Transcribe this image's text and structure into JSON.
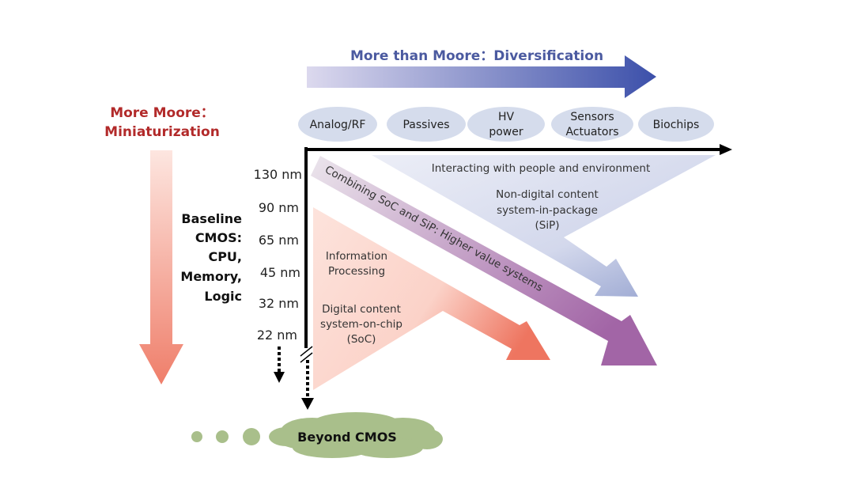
{
  "more_than_moore": {
    "title": "More than Moore：Diversification",
    "color": "#4b5aa0"
  },
  "more_moore": {
    "line1": "More Moore：",
    "line2": "Miniaturization",
    "color": "#b22a2a"
  },
  "categories": [
    {
      "lines": [
        "Analog/RF"
      ]
    },
    {
      "lines": [
        "Passives"
      ]
    },
    {
      "lines": [
        "HV",
        "power"
      ]
    },
    {
      "lines": [
        "Sensors",
        "Actuators"
      ]
    },
    {
      "lines": [
        "Biochips"
      ]
    }
  ],
  "nodes": [
    "130 nm",
    "90 nm",
    "65 nm",
    "45 nm",
    "32 nm",
    "22 nm"
  ],
  "baseline": [
    "Baseline",
    "CMOS:",
    "CPU,",
    "Memory,",
    "Logic"
  ],
  "sip_region": {
    "heading": "Interacting with people and environment",
    "lines": [
      "Non-digital content",
      "system-in-package",
      "(SiP)"
    ]
  },
  "combined_band": {
    "label": "Combining SoC and SiP: Higher value systems"
  },
  "soc_region": {
    "heading": [
      "Information",
      "Processing"
    ],
    "lines": [
      "Digital content",
      "system-on-chip",
      "(SoC)"
    ]
  },
  "beyond": {
    "label": "Beyond CMOS",
    "color": "#a9bf8b"
  }
}
